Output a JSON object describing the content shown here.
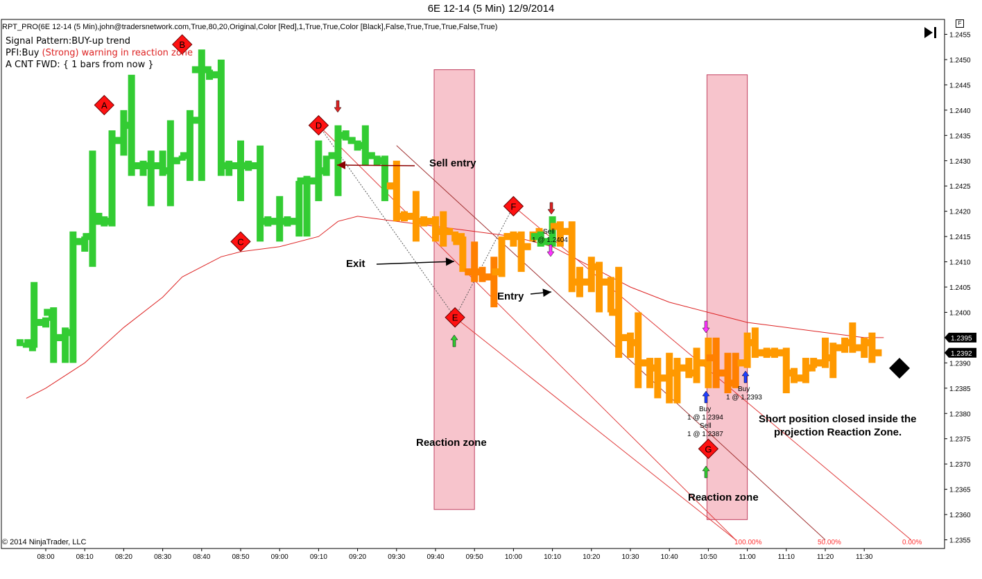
{
  "window": {
    "title": "6E 12-14 (5 Min)  12/9/2014"
  },
  "indicator_line": "RPT_PRO(6E 12-14 (5 Min),john@tradersnetwork.com,True,80,20,Original,Color [Red],1,True,True,Color [Black],False,True,True,True,False,True)",
  "info": {
    "signal_pattern": "Signal Pattern:BUY-up trend",
    "pfi_prefix": "PFI:Buy ",
    "pfi_warning": "(Strong) warning in reaction zone",
    "count_forward": "A CNT FWD: { 1 bars from now }"
  },
  "copyright": "© 2014 NinjaTrader, LLC",
  "panel_button": "F",
  "annotations": {
    "sell_entry": "Sell entry",
    "exit": "Exit",
    "entry": "Entry",
    "reaction_zone_1": "Reaction zone",
    "reaction_zone_2": "Reaction zone",
    "short_closed_1": "Short position closed inside the",
    "short_closed_2": "projection Reaction Zone."
  },
  "orders": {
    "sell_1": "Sell",
    "sell_1_price": "1 @ 1.2404",
    "buy_1": "Buy",
    "buy_1_price": "1 @ 1.2394",
    "sell_2": "Sell",
    "sell_2_price": "1 @ 1.2387",
    "buy_2": "Buy",
    "buy_2_price": "1 @ 1.2393"
  },
  "fib_labels": {
    "f100": "100.00%",
    "f50": "50.00%",
    "f0": "0.00%"
  },
  "price_tags": {
    "upper": "1.2395",
    "lower": "1.2392"
  },
  "colors": {
    "up_trend": "#33cc33",
    "down_trend": "#ff9900",
    "reaction_bar": "#ff8000",
    "moving_average": "#dd2222",
    "reaction_zone_fill": "#f7c4cc",
    "swing_marker": "#ff1111"
  },
  "chart_data": {
    "type": "line",
    "instrument": "6E 12-14",
    "interval": "5 Min",
    "date": "12/9/2014",
    "ylim": [
      1.2352,
      1.2458
    ],
    "y_ticks": [
      "1.2355",
      "1.2360",
      "1.2365",
      "1.2370",
      "1.2375",
      "1.2380",
      "1.2385",
      "1.2390",
      "1.2395",
      "1.2400",
      "1.2405",
      "1.2410",
      "1.2415",
      "1.2420",
      "1.2425",
      "1.2430",
      "1.2435",
      "1.2440",
      "1.2445",
      "1.2450",
      "1.2455"
    ],
    "x_ticks": [
      "08:00",
      "08:10",
      "08:20",
      "08:30",
      "08:40",
      "08:50",
      "09:00",
      "09:10",
      "09:20",
      "09:30",
      "09:40",
      "09:50",
      "10:00",
      "10:10",
      "10:20",
      "10:30",
      "10:40",
      "10:50",
      "11:00",
      "11:10",
      "11:20",
      "11:30"
    ],
    "bars": [
      {
        "t": "07:55",
        "o": 1.2394,
        "h": 1.2394,
        "l": 1.2393,
        "c": 1.2393,
        "trend": "up"
      },
      {
        "t": "07:57",
        "o": 1.2394,
        "h": 1.2406,
        "l": 1.2393,
        "c": 1.2398,
        "trend": "up"
      },
      {
        "t": "08:00",
        "o": 1.2398,
        "h": 1.2399,
        "l": 1.2397,
        "c": 1.2399,
        "trend": "up"
      },
      {
        "t": "08:02",
        "o": 1.24,
        "h": 1.2401,
        "l": 1.239,
        "c": 1.2395,
        "trend": "up"
      },
      {
        "t": "08:05",
        "o": 1.2395,
        "h": 1.2397,
        "l": 1.239,
        "c": 1.2396,
        "trend": "up"
      },
      {
        "t": "08:07",
        "o": 1.2396,
        "h": 1.2416,
        "l": 1.239,
        "c": 1.2414,
        "trend": "up"
      },
      {
        "t": "08:10",
        "o": 1.2414,
        "h": 1.2415,
        "l": 1.2412,
        "c": 1.2415,
        "trend": "up"
      },
      {
        "t": "08:12",
        "o": 1.2415,
        "h": 1.2432,
        "l": 1.2409,
        "c": 1.2419,
        "trend": "up"
      },
      {
        "t": "08:15",
        "o": 1.2418,
        "h": 1.2419,
        "l": 1.2417,
        "c": 1.2418,
        "trend": "up"
      },
      {
        "t": "08:17",
        "o": 1.2418,
        "h": 1.2436,
        "l": 1.2417,
        "c": 1.2434,
        "trend": "up"
      },
      {
        "t": "08:20",
        "o": 1.2434,
        "h": 1.244,
        "l": 1.2431,
        "c": 1.2437,
        "trend": "up"
      },
      {
        "t": "08:22",
        "o": 1.2437,
        "h": 1.2447,
        "l": 1.2427,
        "c": 1.2429,
        "trend": "up"
      },
      {
        "t": "08:25",
        "o": 1.2429,
        "h": 1.243,
        "l": 1.2427,
        "c": 1.2429,
        "trend": "up"
      },
      {
        "t": "08:27",
        "o": 1.2429,
        "h": 1.2432,
        "l": 1.2421,
        "c": 1.2429,
        "trend": "up"
      },
      {
        "t": "08:30",
        "o": 1.2429,
        "h": 1.2432,
        "l": 1.2427,
        "c": 1.2428,
        "trend": "up"
      },
      {
        "t": "08:32",
        "o": 1.2428,
        "h": 1.2438,
        "l": 1.2421,
        "c": 1.243,
        "trend": "up"
      },
      {
        "t": "08:35",
        "o": 1.243,
        "h": 1.2431,
        "l": 1.243,
        "c": 1.2431,
        "trend": "up"
      },
      {
        "t": "08:37",
        "o": 1.2431,
        "h": 1.244,
        "l": 1.2426,
        "c": 1.2438,
        "trend": "up"
      },
      {
        "t": "08:40",
        "o": 1.2448,
        "h": 1.2452,
        "l": 1.2426,
        "c": 1.2448,
        "trend": "up"
      },
      {
        "t": "08:42",
        "o": 1.2448,
        "h": 1.2448,
        "l": 1.2446,
        "c": 1.2447,
        "trend": "up"
      },
      {
        "t": "08:45",
        "o": 1.2447,
        "h": 1.245,
        "l": 1.2427,
        "c": 1.2429,
        "trend": "up"
      },
      {
        "t": "08:47",
        "o": 1.2429,
        "h": 1.243,
        "l": 1.2427,
        "c": 1.2429,
        "trend": "up"
      },
      {
        "t": "08:50",
        "o": 1.2429,
        "h": 1.2434,
        "l": 1.2422,
        "c": 1.2429,
        "trend": "up"
      },
      {
        "t": "08:52",
        "o": 1.2429,
        "h": 1.243,
        "l": 1.2428,
        "c": 1.2429,
        "trend": "up"
      },
      {
        "t": "08:55",
        "o": 1.2429,
        "h": 1.2433,
        "l": 1.2414,
        "c": 1.2418,
        "trend": "up"
      },
      {
        "t": "08:57",
        "o": 1.2418,
        "h": 1.2419,
        "l": 1.2417,
        "c": 1.2418,
        "trend": "up"
      },
      {
        "t": "09:00",
        "o": 1.2418,
        "h": 1.2423,
        "l": 1.2414,
        "c": 1.2418,
        "trend": "up"
      },
      {
        "t": "09:02",
        "o": 1.2418,
        "h": 1.2419,
        "l": 1.2417,
        "c": 1.2418,
        "trend": "up"
      },
      {
        "t": "09:05",
        "o": 1.2418,
        "h": 1.2426,
        "l": 1.2415,
        "c": 1.2426,
        "trend": "up"
      },
      {
        "t": "09:07",
        "o": 1.2426,
        "h": 1.2427,
        "l": 1.2415,
        "c": 1.2426,
        "trend": "up"
      },
      {
        "t": "09:10",
        "o": 1.2426,
        "h": 1.2434,
        "l": 1.2422,
        "c": 1.2428,
        "trend": "up"
      },
      {
        "t": "09:12",
        "o": 1.2428,
        "h": 1.2431,
        "l": 1.2427,
        "c": 1.2431,
        "trend": "up"
      },
      {
        "t": "09:15",
        "o": 1.2431,
        "h": 1.2437,
        "l": 1.2423,
        "c": 1.2435,
        "trend": "up"
      },
      {
        "t": "09:17",
        "o": 1.2435,
        "h": 1.2436,
        "l": 1.2434,
        "c": 1.2434,
        "trend": "up"
      },
      {
        "t": "09:20",
        "o": 1.2434,
        "h": 1.2434,
        "l": 1.2432,
        "c": 1.2433,
        "trend": "up"
      },
      {
        "t": "09:22",
        "o": 1.2433,
        "h": 1.2437,
        "l": 1.2429,
        "c": 1.2431,
        "trend": "up"
      },
      {
        "t": "09:25",
        "o": 1.2431,
        "h": 1.2431,
        "l": 1.2429,
        "c": 1.243,
        "trend": "up"
      },
      {
        "t": "09:27",
        "o": 1.243,
        "h": 1.2431,
        "l": 1.2422,
        "c": 1.2425,
        "trend": "up"
      },
      {
        "t": "09:30",
        "o": 1.2425,
        "h": 1.243,
        "l": 1.2418,
        "c": 1.2419,
        "trend": "down"
      },
      {
        "t": "09:32",
        "o": 1.2419,
        "h": 1.242,
        "l": 1.2418,
        "c": 1.2419,
        "trend": "down"
      },
      {
        "t": "09:35",
        "o": 1.2419,
        "h": 1.2424,
        "l": 1.2414,
        "c": 1.2418,
        "trend": "down"
      },
      {
        "t": "09:37",
        "o": 1.2418,
        "h": 1.2419,
        "l": 1.2417,
        "c": 1.2418,
        "trend": "down"
      },
      {
        "t": "09:40",
        "o": 1.2418,
        "h": 1.2419,
        "l": 1.2414,
        "c": 1.2416,
        "trend": "down"
      },
      {
        "t": "09:42",
        "o": 1.2416,
        "h": 1.242,
        "l": 1.2413,
        "c": 1.2416,
        "trend": "down"
      },
      {
        "t": "09:45",
        "o": 1.2416,
        "h": 1.2416,
        "l": 1.2414,
        "c": 1.2415,
        "trend": "down"
      },
      {
        "t": "09:47",
        "o": 1.2414,
        "h": 1.2415,
        "l": 1.2408,
        "c": 1.2408,
        "trend": "down"
      },
      {
        "t": "09:50",
        "o": 1.2408,
        "h": 1.2414,
        "l": 1.2406,
        "c": 1.2408,
        "trend": "reaction"
      },
      {
        "t": "09:52",
        "o": 1.2408,
        "h": 1.2409,
        "l": 1.2406,
        "c": 1.2407,
        "trend": "reaction"
      },
      {
        "t": "09:55",
        "o": 1.2407,
        "h": 1.2411,
        "l": 1.2401,
        "c": 1.2408,
        "trend": "reaction"
      },
      {
        "t": "09:57",
        "o": 1.2408,
        "h": 1.2415,
        "l": 1.2407,
        "c": 1.2415,
        "trend": "down"
      },
      {
        "t": "10:00",
        "o": 1.2415,
        "h": 1.2416,
        "l": 1.2413,
        "c": 1.2415,
        "trend": "down"
      },
      {
        "t": "10:02",
        "o": 1.2415,
        "h": 1.2416,
        "l": 1.2408,
        "c": 1.2413,
        "trend": "down"
      },
      {
        "t": "10:05",
        "o": 1.2413,
        "h": 1.2416,
        "l": 1.2414,
        "c": 1.2416,
        "trend": "down"
      },
      {
        "t": "10:07",
        "o": 1.2415,
        "h": 1.2416,
        "l": 1.2413,
        "c": 1.2414,
        "trend": "up"
      },
      {
        "t": "10:10",
        "o": 1.2414,
        "h": 1.2419,
        "l": 1.2413,
        "c": 1.2417,
        "trend": "up"
      },
      {
        "t": "10:12",
        "o": 1.2417,
        "h": 1.2418,
        "l": 1.2413,
        "c": 1.2416,
        "trend": "down"
      },
      {
        "t": "10:15",
        "o": 1.2416,
        "h": 1.2418,
        "l": 1.2404,
        "c": 1.2406,
        "trend": "down"
      },
      {
        "t": "10:17",
        "o": 1.2406,
        "h": 1.2409,
        "l": 1.2403,
        "c": 1.2406,
        "trend": "down"
      },
      {
        "t": "10:20",
        "o": 1.2406,
        "h": 1.2411,
        "l": 1.2404,
        "c": 1.2409,
        "trend": "down"
      },
      {
        "t": "10:22",
        "o": 1.2409,
        "h": 1.241,
        "l": 1.24,
        "c": 1.2406,
        "trend": "down"
      },
      {
        "t": "10:25",
        "o": 1.2406,
        "h": 1.2407,
        "l": 1.24,
        "c": 1.24,
        "trend": "down"
      },
      {
        "t": "10:27",
        "o": 1.24,
        "h": 1.2409,
        "l": 1.2391,
        "c": 1.2395,
        "trend": "down"
      },
      {
        "t": "10:30",
        "o": 1.2395,
        "h": 1.2396,
        "l": 1.2391,
        "c": 1.2394,
        "trend": "down"
      },
      {
        "t": "10:32",
        "o": 1.2394,
        "h": 1.24,
        "l": 1.2385,
        "c": 1.239,
        "trend": "down"
      },
      {
        "t": "10:35",
        "o": 1.239,
        "h": 1.2391,
        "l": 1.2385,
        "c": 1.2389,
        "trend": "down"
      },
      {
        "t": "10:37",
        "o": 1.2389,
        "h": 1.2391,
        "l": 1.2383,
        "c": 1.2387,
        "trend": "down"
      },
      {
        "t": "10:40",
        "o": 1.2387,
        "h": 1.2392,
        "l": 1.2382,
        "c": 1.2388,
        "trend": "down"
      },
      {
        "t": "10:42",
        "o": 1.2388,
        "h": 1.2391,
        "l": 1.2382,
        "c": 1.2389,
        "trend": "down"
      },
      {
        "t": "10:45",
        "o": 1.2389,
        "h": 1.2391,
        "l": 1.2387,
        "c": 1.2388,
        "trend": "down"
      },
      {
        "t": "10:47",
        "o": 1.2388,
        "h": 1.2393,
        "l": 1.2386,
        "c": 1.239,
        "trend": "down"
      },
      {
        "t": "10:50",
        "o": 1.239,
        "h": 1.2395,
        "l": 1.2385,
        "c": 1.2391,
        "trend": "down"
      },
      {
        "t": "10:52",
        "o": 1.2391,
        "h": 1.2395,
        "l": 1.2385,
        "c": 1.2388,
        "trend": "reaction"
      },
      {
        "t": "10:55",
        "o": 1.2388,
        "h": 1.2392,
        "l": 1.2384,
        "c": 1.2386,
        "trend": "reaction"
      },
      {
        "t": "10:57",
        "o": 1.2386,
        "h": 1.2392,
        "l": 1.2385,
        "c": 1.239,
        "trend": "reaction"
      },
      {
        "t": "11:00",
        "o": 1.239,
        "h": 1.2396,
        "l": 1.2389,
        "c": 1.2394,
        "trend": "down"
      },
      {
        "t": "11:02",
        "o": 1.2394,
        "h": 1.2397,
        "l": 1.2391,
        "c": 1.2392,
        "trend": "down"
      },
      {
        "t": "11:05",
        "o": 1.2392,
        "h": 1.2393,
        "l": 1.2391,
        "c": 1.2392,
        "trend": "down"
      },
      {
        "t": "11:07",
        "o": 1.2392,
        "h": 1.2393,
        "l": 1.2391,
        "c": 1.2392,
        "trend": "down"
      },
      {
        "t": "11:10",
        "o": 1.2392,
        "h": 1.2393,
        "l": 1.2384,
        "c": 1.2388,
        "trend": "down"
      },
      {
        "t": "11:12",
        "o": 1.2388,
        "h": 1.2389,
        "l": 1.2386,
        "c": 1.2387,
        "trend": "down"
      },
      {
        "t": "11:15",
        "o": 1.2387,
        "h": 1.2391,
        "l": 1.2386,
        "c": 1.2389,
        "trend": "down"
      },
      {
        "t": "11:17",
        "o": 1.2389,
        "h": 1.2391,
        "l": 1.2389,
        "c": 1.239,
        "trend": "down"
      },
      {
        "t": "11:20",
        "o": 1.239,
        "h": 1.2395,
        "l": 1.2389,
        "c": 1.2391,
        "trend": "down"
      },
      {
        "t": "11:22",
        "o": 1.2391,
        "h": 1.2394,
        "l": 1.2387,
        "c": 1.2393,
        "trend": "down"
      },
      {
        "t": "11:25",
        "o": 1.2393,
        "h": 1.2395,
        "l": 1.2392,
        "c": 1.2394,
        "trend": "down"
      },
      {
        "t": "11:27",
        "o": 1.2394,
        "h": 1.2398,
        "l": 1.2392,
        "c": 1.2393,
        "trend": "down"
      },
      {
        "t": "11:30",
        "o": 1.2393,
        "h": 1.2395,
        "l": 1.2391,
        "c": 1.2394,
        "trend": "down"
      },
      {
        "t": "11:32",
        "o": 1.2394,
        "h": 1.2396,
        "l": 1.239,
        "c": 1.2392,
        "trend": "down"
      }
    ],
    "moving_average": [
      {
        "t": "07:55",
        "v": 1.2383
      },
      {
        "t": "08:00",
        "v": 1.2385
      },
      {
        "t": "08:10",
        "v": 1.239
      },
      {
        "t": "08:20",
        "v": 1.2397
      },
      {
        "t": "08:30",
        "v": 1.2403
      },
      {
        "t": "08:35",
        "v": 1.2407
      },
      {
        "t": "08:45",
        "v": 1.2411
      },
      {
        "t": "08:50",
        "v": 1.2412
      },
      {
        "t": "09:00",
        "v": 1.2413
      },
      {
        "t": "09:10",
        "v": 1.2415
      },
      {
        "t": "09:15",
        "v": 1.2418
      },
      {
        "t": "09:20",
        "v": 1.2419
      },
      {
        "t": "09:30",
        "v": 1.2418
      },
      {
        "t": "09:40",
        "v": 1.2417
      },
      {
        "t": "09:50",
        "v": 1.2416
      },
      {
        "t": "10:00",
        "v": 1.2415
      },
      {
        "t": "10:10",
        "v": 1.2413
      },
      {
        "t": "10:20",
        "v": 1.2409
      },
      {
        "t": "10:30",
        "v": 1.2405
      },
      {
        "t": "10:40",
        "v": 1.2402
      },
      {
        "t": "10:50",
        "v": 1.24
      },
      {
        "t": "11:00",
        "v": 1.2398
      },
      {
        "t": "11:10",
        "v": 1.2397
      },
      {
        "t": "11:20",
        "v": 1.2396
      },
      {
        "t": "11:30",
        "v": 1.2395
      },
      {
        "t": "11:35",
        "v": 1.2395
      }
    ],
    "swing_points": [
      {
        "label": "A",
        "t": "08:15",
        "v": 1.2441
      },
      {
        "label": "B",
        "t": "08:35",
        "v": 1.2453
      },
      {
        "label": "C",
        "t": "08:50",
        "v": 1.2414
      },
      {
        "label": "D",
        "t": "09:10",
        "v": 1.2437
      },
      {
        "label": "E",
        "t": "09:45",
        "v": 1.2399
      },
      {
        "label": "F",
        "t": "10:00",
        "v": 1.2421
      },
      {
        "label": "G",
        "t": "10:50",
        "v": 1.2373
      }
    ],
    "projection_lines": [
      {
        "from": {
          "t": "09:10",
          "v": 1.2437
        },
        "to": {
          "t": "10:57",
          "v": 1.2355
        },
        "label": "100.00%"
      },
      {
        "from": {
          "t": "09:30",
          "v": 1.2433
        },
        "to": {
          "t": "11:20",
          "v": 1.2355
        },
        "label": "50.00%"
      },
      {
        "from": {
          "t": "10:00",
          "v": 1.2421
        },
        "to": {
          "t": "11:42",
          "v": 1.2355
        },
        "label": "0.00%"
      },
      {
        "from": {
          "t": "09:45",
          "v": 1.2399
        },
        "to": {
          "t": "10:57",
          "v": 1.2355
        },
        "label": ""
      }
    ],
    "reaction_zones": [
      {
        "from": "09:40",
        "to": "09:50",
        "top": 1.2448,
        "bottom": 1.2361
      },
      {
        "from": "10:50",
        "to": "11:00",
        "top": 1.2447,
        "bottom": 1.2359
      }
    ],
    "trades": [
      {
        "side": "sell",
        "t": "10:10",
        "price": 1.2404
      },
      {
        "side": "buy",
        "t": "10:50",
        "price": 1.2394
      },
      {
        "side": "sell",
        "t": "10:50",
        "price": 1.2387
      },
      {
        "side": "buy",
        "t": "11:00",
        "price": 1.2393
      }
    ],
    "last_prices": [
      1.2395,
      1.2392
    ]
  }
}
